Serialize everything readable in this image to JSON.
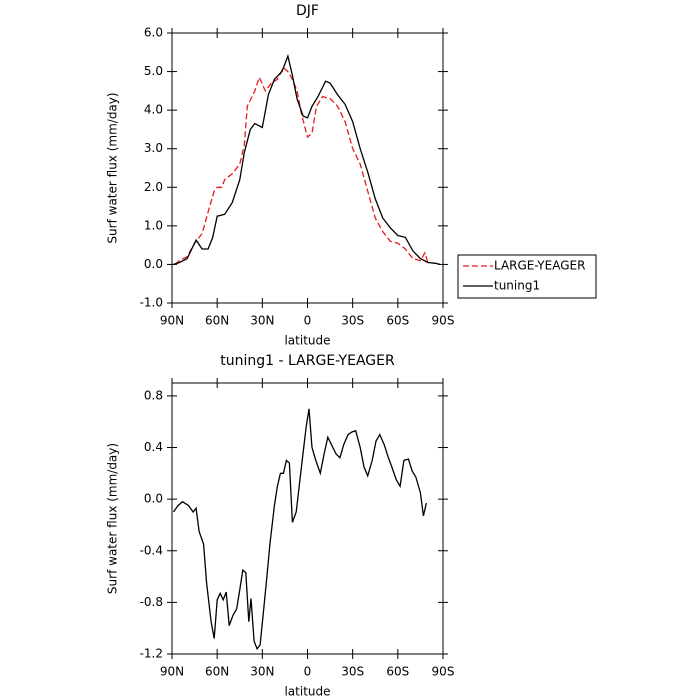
{
  "chart_data": [
    {
      "type": "line",
      "title": "DJF",
      "xlabel": "latitude",
      "ylabel": "Surf water flux (mm/day)",
      "xlim": [
        90,
        -90
      ],
      "xticks": [
        {
          "value": 90,
          "label": "90N"
        },
        {
          "value": 60,
          "label": "60N"
        },
        {
          "value": 30,
          "label": "30N"
        },
        0,
        {
          "value": -30,
          "label": "30S"
        },
        {
          "value": -60,
          "label": "60S"
        },
        {
          "value": -90,
          "label": "90S"
        }
      ],
      "ylim": [
        -1,
        6
      ],
      "yticks": [
        {
          "value": -1,
          "label": "-1.0"
        },
        {
          "value": 0,
          "label": "0.0"
        },
        {
          "value": 1,
          "label": "1.0"
        },
        {
          "value": 2,
          "label": "2.0"
        },
        {
          "value": 3,
          "label": "3.0"
        },
        {
          "value": 4,
          "label": "4.0"
        },
        {
          "value": 5,
          "label": "5.0"
        },
        {
          "value": 6,
          "label": "6.0"
        }
      ],
      "legend": "right",
      "series": [
        {
          "name": "LARGE-YEAGER",
          "color": "#e8191c",
          "linestyle": "dashed",
          "x": [
            88,
            85,
            80,
            75,
            70,
            65,
            62,
            60,
            57,
            55,
            50,
            45,
            42,
            40,
            35,
            32,
            28,
            24,
            20,
            16,
            13,
            10,
            7,
            4,
            0,
            -3,
            -6,
            -10,
            -15,
            -20,
            -25,
            -30,
            -35,
            -40,
            -45,
            -50,
            -55,
            -60,
            -65,
            -70,
            -75,
            -78,
            -80
          ],
          "values": [
            0.0,
            0.1,
            0.2,
            0.55,
            0.8,
            1.5,
            1.9,
            2.0,
            2.0,
            2.2,
            2.35,
            2.6,
            3.1,
            4.1,
            4.5,
            4.85,
            4.5,
            4.7,
            4.8,
            5.1,
            5.0,
            4.8,
            4.5,
            3.9,
            3.3,
            3.4,
            4.1,
            4.35,
            4.3,
            4.1,
            3.7,
            3.0,
            2.6,
            1.9,
            1.2,
            0.85,
            0.6,
            0.55,
            0.4,
            0.15,
            0.1,
            0.3,
            0.05
          ]
        },
        {
          "name": "tuning1",
          "color": "#000000",
          "linestyle": "solid",
          "x": [
            89,
            85,
            80,
            74,
            70,
            66,
            63,
            60,
            55,
            50,
            45,
            42,
            38,
            35,
            30,
            26,
            22,
            17,
            13,
            10,
            7,
            3,
            0,
            -3,
            -7,
            -12,
            -15,
            -20,
            -25,
            -30,
            -35,
            -40,
            -45,
            -50,
            -55,
            -60,
            -65,
            -70,
            -75,
            -80,
            -85,
            -88
          ],
          "values": [
            0.0,
            0.05,
            0.15,
            0.63,
            0.4,
            0.4,
            0.7,
            1.25,
            1.3,
            1.6,
            2.2,
            2.9,
            3.5,
            3.65,
            3.55,
            4.4,
            4.8,
            5.0,
            5.4,
            4.9,
            4.3,
            3.85,
            3.8,
            4.1,
            4.35,
            4.75,
            4.7,
            4.4,
            4.15,
            3.7,
            3.0,
            2.4,
            1.7,
            1.2,
            0.95,
            0.75,
            0.7,
            0.35,
            0.15,
            0.05,
            0.03,
            0.0
          ]
        }
      ]
    },
    {
      "type": "line",
      "title": "tuning1 - LARGE-YEAGER",
      "xlabel": "latitude",
      "ylabel": "Surf water flux (mm/day)",
      "xlim": [
        90,
        -90
      ],
      "xticks": [
        {
          "value": 90,
          "label": "90N"
        },
        {
          "value": 60,
          "label": "60N"
        },
        {
          "value": 30,
          "label": "30N"
        },
        0,
        {
          "value": -30,
          "label": "30S"
        },
        {
          "value": -60,
          "label": "60S"
        },
        {
          "value": -90,
          "label": "90S"
        }
      ],
      "ylim": [
        -1.2,
        0.9
      ],
      "yticks": [
        -1.2,
        -0.8,
        -0.4,
        {
          "value": 0,
          "label": "0.0"
        },
        0.4,
        0.8
      ],
      "series": [
        {
          "color": "#000000",
          "linestyle": "solid",
          "x": [
            89,
            86,
            83,
            79,
            76,
            74,
            72,
            69,
            67,
            64,
            62,
            60,
            58,
            56,
            54,
            52,
            49.5,
            47,
            45,
            43,
            41,
            39,
            37.5,
            35.5,
            33.5,
            31.5,
            29.5,
            27,
            25,
            22,
            20,
            18,
            16,
            14,
            12,
            10,
            7.5,
            5.5,
            3.5,
            1,
            -1,
            -3,
            -5.5,
            -8.5,
            -11,
            -13.5,
            -16,
            -19,
            -21.5,
            -24,
            -27,
            -29.5,
            -32,
            -35,
            -37.5,
            -40,
            -43,
            -45.5,
            -48,
            -51,
            -53.5,
            -56,
            -59,
            -61.5,
            -64,
            -67,
            -69.5,
            -72,
            -75,
            -77,
            -79
          ],
          "values": [
            -0.1,
            -0.05,
            -0.02,
            -0.05,
            -0.1,
            -0.07,
            -0.25,
            -0.35,
            -0.65,
            -0.95,
            -1.08,
            -0.78,
            -0.73,
            -0.78,
            -0.72,
            -0.98,
            -0.9,
            -0.85,
            -0.7,
            -0.55,
            -0.57,
            -0.95,
            -0.77,
            -1.1,
            -1.16,
            -1.13,
            -0.9,
            -0.6,
            -0.35,
            -0.05,
            0.1,
            0.2,
            0.2,
            0.3,
            0.28,
            -0.18,
            -0.1,
            0.1,
            0.3,
            0.55,
            0.7,
            0.4,
            0.3,
            0.2,
            0.35,
            0.48,
            0.42,
            0.35,
            0.32,
            0.42,
            0.5,
            0.52,
            0.53,
            0.4,
            0.25,
            0.18,
            0.3,
            0.45,
            0.5,
            0.42,
            0.33,
            0.25,
            0.15,
            0.1,
            0.3,
            0.31,
            0.22,
            0.17,
            0.05,
            -0.13,
            -0.03
          ]
        }
      ]
    }
  ]
}
